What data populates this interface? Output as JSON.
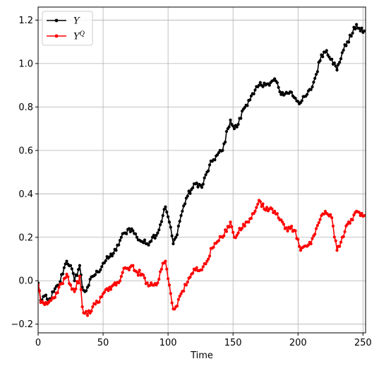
{
  "chart_data": {
    "type": "line",
    "title": "",
    "xlabel": "Time",
    "ylabel": "",
    "xlim": [
      0,
      252
    ],
    "ylim": [
      -0.24,
      1.26
    ],
    "grid": true,
    "legend_position": "top-left",
    "x_ticks": [
      0,
      50,
      100,
      150,
      200,
      250
    ],
    "x_tick_labels": [
      "0",
      "50",
      "100",
      "150",
      "200",
      "250"
    ],
    "y_ticks": [
      -0.2,
      0.0,
      0.2,
      0.4,
      0.6,
      0.8,
      1.0,
      1.2
    ],
    "y_tick_labels": [
      "−0.2",
      "0.0",
      "0.2",
      "0.4",
      "0.6",
      "0.8",
      "1.0",
      "1.2"
    ],
    "series": [
      {
        "name": "Y",
        "color": "#000000",
        "marker": "dot",
        "anchors": [
          [
            0,
            -0.01
          ],
          [
            2,
            -0.09
          ],
          [
            5,
            -0.07
          ],
          [
            8,
            -0.1
          ],
          [
            12,
            -0.05
          ],
          [
            16,
            -0.02
          ],
          [
            20,
            0.06
          ],
          [
            22,
            0.09
          ],
          [
            25,
            0.07
          ],
          [
            28,
            0.0
          ],
          [
            32,
            0.07
          ],
          [
            34,
            -0.03
          ],
          [
            36,
            -0.05
          ],
          [
            38,
            -0.03
          ],
          [
            42,
            0.02
          ],
          [
            46,
            0.04
          ],
          [
            50,
            0.08
          ],
          [
            55,
            0.11
          ],
          [
            60,
            0.14
          ],
          [
            64,
            0.2
          ],
          [
            67,
            0.22
          ],
          [
            70,
            0.24
          ],
          [
            73,
            0.23
          ],
          [
            76,
            0.2
          ],
          [
            80,
            0.18
          ],
          [
            84,
            0.17
          ],
          [
            88,
            0.2
          ],
          [
            92,
            0.22
          ],
          [
            96,
            0.3
          ],
          [
            98,
            0.34
          ],
          [
            101,
            0.27
          ],
          [
            104,
            0.17
          ],
          [
            106,
            0.2
          ],
          [
            110,
            0.3
          ],
          [
            114,
            0.38
          ],
          [
            118,
            0.42
          ],
          [
            122,
            0.45
          ],
          [
            126,
            0.43
          ],
          [
            130,
            0.5
          ],
          [
            134,
            0.55
          ],
          [
            138,
            0.58
          ],
          [
            142,
            0.6
          ],
          [
            146,
            0.7
          ],
          [
            148,
            0.74
          ],
          [
            151,
            0.7
          ],
          [
            154,
            0.72
          ],
          [
            158,
            0.79
          ],
          [
            162,
            0.83
          ],
          [
            166,
            0.86
          ],
          [
            170,
            0.9
          ],
          [
            174,
            0.91
          ],
          [
            178,
            0.9
          ],
          [
            182,
            0.93
          ],
          [
            186,
            0.87
          ],
          [
            190,
            0.86
          ],
          [
            194,
            0.87
          ],
          [
            198,
            0.84
          ],
          [
            202,
            0.82
          ],
          [
            206,
            0.85
          ],
          [
            210,
            0.88
          ],
          [
            214,
            0.95
          ],
          [
            218,
            1.04
          ],
          [
            222,
            1.06
          ],
          [
            226,
            1.02
          ],
          [
            230,
            0.97
          ],
          [
            234,
            1.05
          ],
          [
            238,
            1.1
          ],
          [
            242,
            1.14
          ],
          [
            245,
            1.18
          ],
          [
            248,
            1.15
          ],
          [
            251,
            1.15
          ]
        ]
      },
      {
        "name": "Y^Q",
        "color": "#ff0000",
        "marker": "dot",
        "anchors": [
          [
            0,
            -0.02
          ],
          [
            2,
            -0.1
          ],
          [
            5,
            -0.11
          ],
          [
            8,
            -0.1
          ],
          [
            12,
            -0.08
          ],
          [
            16,
            -0.03
          ],
          [
            20,
            0.01
          ],
          [
            22,
            0.03
          ],
          [
            25,
            -0.02
          ],
          [
            28,
            -0.05
          ],
          [
            32,
            0.02
          ],
          [
            34,
            -0.12
          ],
          [
            36,
            -0.15
          ],
          [
            38,
            -0.16
          ],
          [
            42,
            -0.12
          ],
          [
            46,
            -0.1
          ],
          [
            50,
            -0.06
          ],
          [
            55,
            -0.03
          ],
          [
            60,
            -0.02
          ],
          [
            64,
            0.02
          ],
          [
            67,
            0.06
          ],
          [
            70,
            0.05
          ],
          [
            73,
            0.07
          ],
          [
            76,
            0.04
          ],
          [
            80,
            0.03
          ],
          [
            84,
            -0.01
          ],
          [
            88,
            -0.02
          ],
          [
            92,
            -0.01
          ],
          [
            96,
            0.08
          ],
          [
            98,
            0.09
          ],
          [
            101,
            -0.02
          ],
          [
            104,
            -0.13
          ],
          [
            106,
            -0.12
          ],
          [
            110,
            -0.06
          ],
          [
            114,
            -0.02
          ],
          [
            118,
            0.03
          ],
          [
            122,
            0.06
          ],
          [
            126,
            0.05
          ],
          [
            130,
            0.09
          ],
          [
            134,
            0.15
          ],
          [
            138,
            0.18
          ],
          [
            142,
            0.2
          ],
          [
            146,
            0.25
          ],
          [
            148,
            0.27
          ],
          [
            151,
            0.2
          ],
          [
            154,
            0.22
          ],
          [
            158,
            0.26
          ],
          [
            162,
            0.27
          ],
          [
            166,
            0.31
          ],
          [
            170,
            0.37
          ],
          [
            174,
            0.33
          ],
          [
            178,
            0.33
          ],
          [
            182,
            0.32
          ],
          [
            186,
            0.28
          ],
          [
            190,
            0.24
          ],
          [
            194,
            0.24
          ],
          [
            198,
            0.23
          ],
          [
            202,
            0.14
          ],
          [
            206,
            0.16
          ],
          [
            210,
            0.17
          ],
          [
            214,
            0.24
          ],
          [
            218,
            0.3
          ],
          [
            222,
            0.31
          ],
          [
            226,
            0.29
          ],
          [
            230,
            0.14
          ],
          [
            234,
            0.2
          ],
          [
            238,
            0.26
          ],
          [
            242,
            0.28
          ],
          [
            245,
            0.32
          ],
          [
            248,
            0.3
          ],
          [
            251,
            0.3
          ]
        ]
      }
    ]
  }
}
